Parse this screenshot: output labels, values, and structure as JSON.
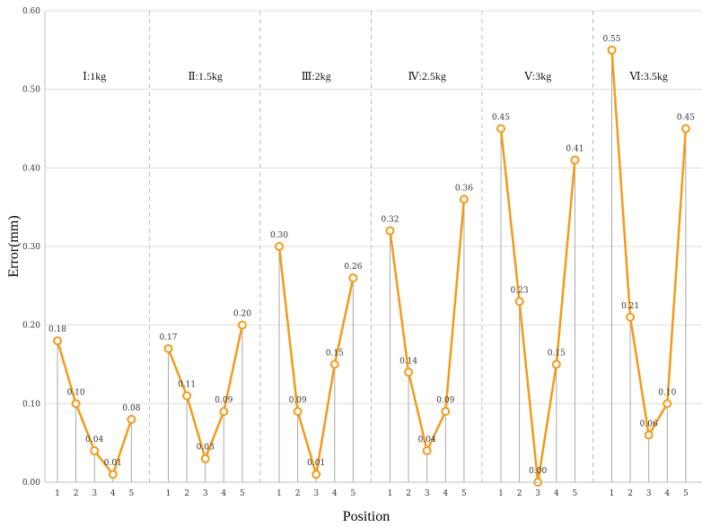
{
  "chart_data": {
    "type": "line",
    "xlabel": "Position",
    "ylabel": "Error(mm)",
    "ylim": [
      0,
      0.6
    ],
    "y_ticks": [
      "0.00",
      "0.10",
      "0.20",
      "0.30",
      "0.40",
      "0.50",
      "0.60"
    ],
    "grid": "horizontal",
    "colors": {
      "line": "#F39A1A",
      "stem": "#A8A8A8",
      "grid": "#DDDDDD",
      "separator": "#BBBBBB",
      "marker_fill": "#FFFFFF"
    },
    "groups": [
      {
        "name": "Ⅰ:1kg",
        "positions": [
          "1",
          "2",
          "3",
          "4",
          "5"
        ],
        "values": [
          0.18,
          0.1,
          0.04,
          0.01,
          0.08
        ],
        "labels": [
          "0.18",
          "0.10",
          "0.04",
          "0.01",
          "0.08"
        ]
      },
      {
        "name": "Ⅱ:1.5kg",
        "positions": [
          "1",
          "2",
          "3",
          "4",
          "5"
        ],
        "values": [
          0.17,
          0.11,
          0.03,
          0.09,
          0.2
        ],
        "labels": [
          "0.17",
          "0.11",
          "0.03",
          "0.09",
          "0.20"
        ]
      },
      {
        "name": "Ⅲ:2kg",
        "positions": [
          "1",
          "2",
          "3",
          "4",
          "5"
        ],
        "values": [
          0.3,
          0.09,
          0.01,
          0.15,
          0.26
        ],
        "labels": [
          "0.30",
          "0.09",
          "0.01",
          "0.15",
          "0.26"
        ]
      },
      {
        "name": "Ⅳ:2.5kg",
        "positions": [
          "1",
          "2",
          "3",
          "4",
          "5"
        ],
        "values": [
          0.32,
          0.14,
          0.04,
          0.09,
          0.36
        ],
        "labels": [
          "0.32",
          "0.14",
          "0.04",
          "0.09",
          "0.36"
        ]
      },
      {
        "name": "Ⅴ:3kg",
        "positions": [
          "1",
          "2",
          "3",
          "4",
          "5"
        ],
        "values": [
          0.45,
          0.23,
          0.0,
          0.15,
          0.41
        ],
        "labels": [
          "0.45",
          "0.23",
          "0.00",
          "0.15",
          "0.41"
        ]
      },
      {
        "name": "Ⅵ:3.5kg",
        "positions": [
          "1",
          "2",
          "3",
          "4",
          "5"
        ],
        "values": [
          0.55,
          0.21,
          0.06,
          0.1,
          0.45
        ],
        "labels": [
          "0.55",
          "0.21",
          "0.06",
          "0.10",
          "0.45"
        ]
      }
    ]
  }
}
